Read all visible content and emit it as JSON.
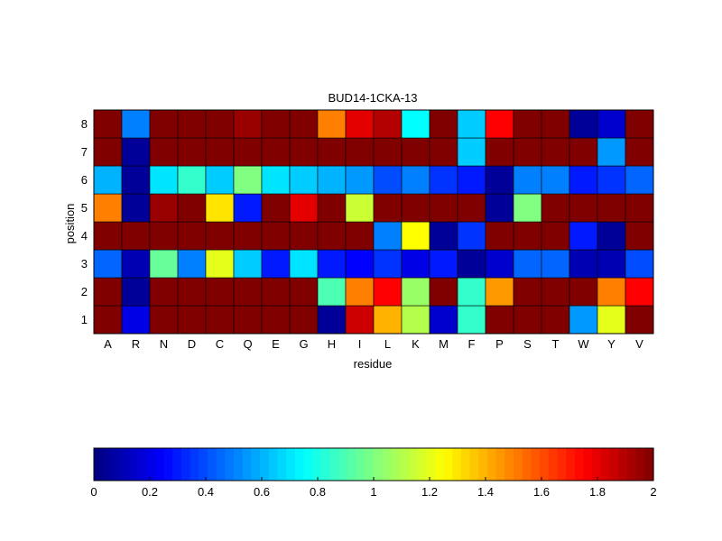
{
  "chart_data": {
    "type": "heatmap",
    "title": "BUD14-1CKA-13",
    "xlabel": "residue",
    "ylabel": "position",
    "x": [
      "A",
      "R",
      "N",
      "D",
      "C",
      "Q",
      "E",
      "G",
      "H",
      "I",
      "L",
      "K",
      "M",
      "F",
      "P",
      "S",
      "T",
      "W",
      "Y",
      "V"
    ],
    "y": [
      "1",
      "2",
      "3",
      "4",
      "5",
      "6",
      "7",
      "8"
    ],
    "zlim": [
      0,
      2
    ],
    "colormap": "jet",
    "colorbar_position": "bottom",
    "colorbar_ticks": [
      "0",
      "0.2",
      "0.4",
      "0.6",
      "0.8",
      "1",
      "1.2",
      "1.4",
      "1.6",
      "1.8",
      "2"
    ],
    "values": [
      [
        2.0,
        0.2,
        2.0,
        2.0,
        2.0,
        2.0,
        2.0,
        2.0,
        0.05,
        1.85,
        1.4,
        1.1,
        0.15,
        0.85,
        2.0,
        2.0,
        2.0,
        0.55,
        1.2,
        2.0
      ],
      [
        2.0,
        0.05,
        2.0,
        2.0,
        2.0,
        2.0,
        2.0,
        2.0,
        0.9,
        1.5,
        1.75,
        1.05,
        2.0,
        0.85,
        1.45,
        2.0,
        2.0,
        2.0,
        1.5,
        1.75
      ],
      [
        0.45,
        0.1,
        0.95,
        0.5,
        1.2,
        0.65,
        0.3,
        0.7,
        0.3,
        0.25,
        0.35,
        0.2,
        0.3,
        0.05,
        0.15,
        0.45,
        0.45,
        0.1,
        0.1,
        0.4
      ],
      [
        2.0,
        2.0,
        2.0,
        2.0,
        2.0,
        2.0,
        2.0,
        2.0,
        2.0,
        2.0,
        0.5,
        1.25,
        0.05,
        0.35,
        2.0,
        2.0,
        2.0,
        0.3,
        0.05,
        2.0
      ],
      [
        1.5,
        0.05,
        1.95,
        2.0,
        1.3,
        0.3,
        2.0,
        1.8,
        2.0,
        1.15,
        2.0,
        2.0,
        2.0,
        2.0,
        0.05,
        1.0,
        2.0,
        2.0,
        2.0,
        2.0
      ],
      [
        0.6,
        0.05,
        0.7,
        0.85,
        0.65,
        1.0,
        0.7,
        0.65,
        0.6,
        0.55,
        0.4,
        0.5,
        0.35,
        0.3,
        0.05,
        0.5,
        0.5,
        0.3,
        0.35,
        0.45
      ],
      [
        2.0,
        0.05,
        2.0,
        2.0,
        2.0,
        2.0,
        2.0,
        2.0,
        2.0,
        2.0,
        2.0,
        2.0,
        2.0,
        0.65,
        2.0,
        2.0,
        2.0,
        2.0,
        0.55,
        2.0
      ],
      [
        2.0,
        0.5,
        2.0,
        2.0,
        2.0,
        1.95,
        2.0,
        2.0,
        1.5,
        1.8,
        1.9,
        0.75,
        2.0,
        0.65,
        1.75,
        2.0,
        2.0,
        0.05,
        0.15,
        2.0
      ]
    ]
  }
}
